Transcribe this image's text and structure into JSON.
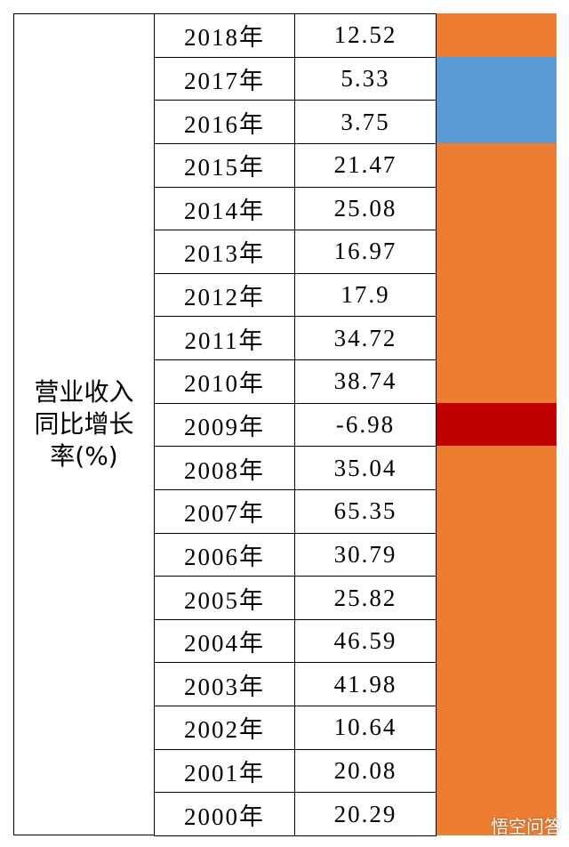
{
  "table": {
    "label": "营业收入同比增长率(%)",
    "rows": [
      {
        "year": "2018年",
        "value": "12.52",
        "color": "#ed7d31"
      },
      {
        "year": "2017年",
        "value": "5.33",
        "color": "#5b9bd5"
      },
      {
        "year": "2016年",
        "value": "3.75",
        "color": "#5b9bd5"
      },
      {
        "year": "2015年",
        "value": "21.47",
        "color": "#ed7d31"
      },
      {
        "year": "2014年",
        "value": "25.08",
        "color": "#ed7d31"
      },
      {
        "year": "2013年",
        "value": "16.97",
        "color": "#ed7d31"
      },
      {
        "year": "2012年",
        "value": "17.9",
        "color": "#ed7d31"
      },
      {
        "year": "2011年",
        "value": "34.72",
        "color": "#ed7d31"
      },
      {
        "year": "2010年",
        "value": "38.74",
        "color": "#ed7d31"
      },
      {
        "year": "2009年",
        "value": "-6.98",
        "color": "#c00000"
      },
      {
        "year": "2008年",
        "value": "35.04",
        "color": "#ed7d31"
      },
      {
        "year": "2007年",
        "value": "65.35",
        "color": "#ed7d31"
      },
      {
        "year": "2006年",
        "value": "30.79",
        "color": "#ed7d31"
      },
      {
        "year": "2005年",
        "value": "25.82",
        "color": "#ed7d31"
      },
      {
        "year": "2004年",
        "value": "46.59",
        "color": "#ed7d31"
      },
      {
        "year": "2003年",
        "value": "41.98",
        "color": "#ed7d31"
      },
      {
        "year": "2002年",
        "value": "10.64",
        "color": "#ed7d31"
      },
      {
        "year": "2001年",
        "value": "20.08",
        "color": "#ed7d31"
      },
      {
        "year": "2000年",
        "value": "20.29",
        "color": "#ed7d31"
      }
    ]
  },
  "watermark": "悟空问答"
}
